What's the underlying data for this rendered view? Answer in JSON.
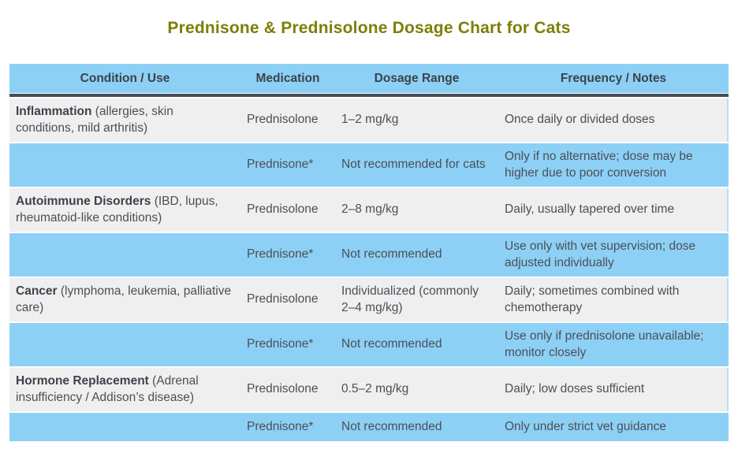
{
  "title": "Prednisone & Prednisolone Dosage Chart for Cats",
  "colors": {
    "title_text": "#7e7e08",
    "header_bg": "#8dd0f6",
    "row_blue_bg": "#8dd0f6",
    "row_gray_bg": "#efeff0",
    "header_divider": "#474d57",
    "header_text": "#3d4249",
    "body_text": "#4b4f55",
    "page_bg": "#ffffff"
  },
  "chart_data": {
    "type": "table",
    "title": "Prednisone & Prednisolone Dosage Chart for Cats",
    "columns": [
      "Condition / Use",
      "Medication",
      "Dosage Range",
      "Frequency / Notes"
    ],
    "rows": [
      {
        "condition_bold": "Inflammation",
        "condition_rest": " (allergies, skin conditions, mild arthritis)",
        "medication": "Prednisolone",
        "dosage": "1–2 mg/kg",
        "frequency": "Once daily or divided doses",
        "style": "gray"
      },
      {
        "condition_bold": "",
        "condition_rest": "",
        "medication": "Prednisone*",
        "dosage": "Not recommended for cats",
        "frequency": "Only if no alternative; dose may be higher due to poor conversion",
        "style": "blue"
      },
      {
        "condition_bold": "Autoimmune Disorders",
        "condition_rest": " (IBD, lupus, rheumatoid-like conditions)",
        "medication": "Prednisolone",
        "dosage": "2–8 mg/kg",
        "frequency": "Daily, usually tapered over time",
        "style": "gray"
      },
      {
        "condition_bold": "",
        "condition_rest": "",
        "medication": "Prednisone*",
        "dosage": "Not recommended",
        "frequency": "Use only with vet supervision; dose adjusted individually",
        "style": "blue"
      },
      {
        "condition_bold": "Cancer",
        "condition_rest": " (lymphoma, leukemia, palliative care)",
        "medication": "Prednisolone",
        "dosage": "Individualized (commonly 2–4 mg/kg)",
        "frequency": "Daily; sometimes combined with chemotherapy",
        "style": "gray"
      },
      {
        "condition_bold": "",
        "condition_rest": "",
        "medication": "Prednisone*",
        "dosage": "Not recommended",
        "frequency": "Use only if prednisolone unavailable; monitor closely",
        "style": "blue"
      },
      {
        "condition_bold": "Hormone Replacement",
        "condition_rest": " (Adrenal insufficiency / Addison’s disease)",
        "medication": "Prednisolone",
        "dosage": "0.5–2 mg/kg",
        "frequency": "Daily; low doses sufficient",
        "style": "gray"
      },
      {
        "condition_bold": "",
        "condition_rest": "",
        "medication": "Prednisone*",
        "dosage": "Not recommended",
        "frequency": "Only under strict vet guidance",
        "style": "blue"
      }
    ]
  }
}
